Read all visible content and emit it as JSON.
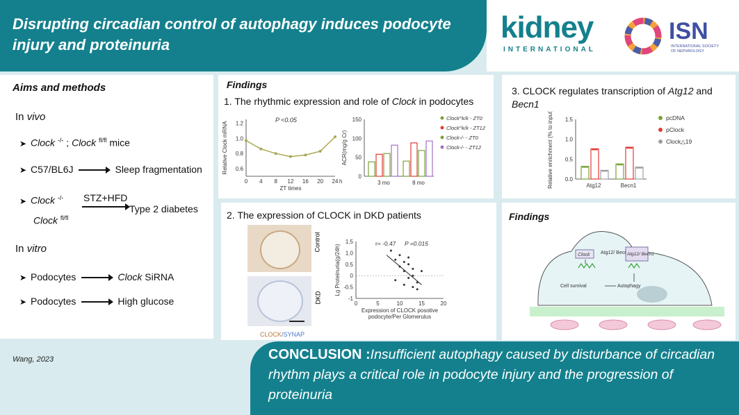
{
  "title": "Disrupting circadian control of autophagy induces podocyte injury and proteinuria",
  "logo_kidney": "kidney",
  "logo_international": "INTERNATIONAL",
  "logo_isn": "ISN",
  "logo_isn_sub1": "INTERNATIONAL SOCIETY",
  "logo_isn_sub2": "OF NEPHROLOGY",
  "aims": {
    "heading": "Aims and methods",
    "in_vivo_a": "In ",
    "in_vivo_b": "vivo",
    "r1_a": "Clock ",
    "r1_sup1": "-/-",
    "r1_b": " ; ",
    "r1_c": "Clock ",
    "r1_sup2": "fl/fl",
    "r1_d": " mice",
    "r2_a": "C57/BL6J",
    "r2_b": "Sleep fragmentation",
    "r3_a": "Clock ",
    "r3_sup1": "-/-",
    "r3_over": "STZ+HFD",
    "r3_b": "Type 2 diabetes",
    "r3_c": "Clock ",
    "r3_sup2": "fl/fl",
    "in_vitro_a": "In ",
    "in_vitro_b": "vitro",
    "r4_a": "Podocytes",
    "r4_b": "Clock",
    " r4_c": " SiRNA",
    "r5_a": "Podocytes",
    "r5_b": "High glucose"
  },
  "findings1": {
    "heading": "Findings",
    "sub_a": "1. The rhythmic expression and role of ",
    "sub_b": "Clock",
    "sub_c": " in podocytes",
    "p_label": "P <0.05",
    "ylabel": "Relative Clock mRNA",
    "xlabel": "ZT times",
    "yticks": [
      "1.2",
      "1.0",
      "0.8",
      "0.6"
    ],
    "xticks": [
      "0",
      "4",
      "8",
      "12",
      "16",
      "20",
      "24"
    ],
    "h_label": "h",
    "acr_ylabel": "ACR(mg/g Cr)",
    "acr_yticks": [
      "150",
      "100",
      "50",
      "0"
    ],
    "acr_groups": [
      "3 mo",
      "8 mo"
    ],
    "legend": [
      "Clock^k/k - ZT0",
      "Clock^k/k - ZT12",
      "Clock-/- - ZT0",
      "Clock-/- - ZT12"
    ]
  },
  "findings2": {
    "sub": "2. The expression of CLOCK in DKD patients",
    "control": "Control",
    "dkd": "DKD",
    "stain_a": "CLOCK",
    "stain_b": "/SYNAP",
    "r_label": "r= -0.47",
    "p_label": "P =0.015",
    "ylabel": "Lg Proteinuria(g/24h)",
    "xlabel1": "Expression of CLOCK posotive",
    "xlabel2": "podocyte/Per Glomerulus",
    "yticks": [
      "1.5",
      "1.0",
      "0.5",
      "0",
      "-0.5",
      "-1"
    ],
    "xticks": [
      "0",
      "5",
      "10",
      "15",
      "20"
    ]
  },
  "findings3": {
    "sub_a": "3. CLOCK regulates transcription of ",
    "sub_b": "Atg12",
    "sub_c": " and ",
    "sub_d": "Becn1",
    "ylabel": "Relative enrichment (% to input)",
    "yticks": [
      "1.5",
      "1.0",
      "0.5",
      "0.0"
    ],
    "groups": [
      "Atg12",
      "Becn1"
    ],
    "legend": [
      "pcDNA",
      "pClock",
      "Clock△19"
    ]
  },
  "findings4": {
    "heading": "Findings",
    "clock": "Clock",
    "atg": "Atg12/ Becn1",
    "atg_box": "Atg12/ Becn1",
    "survival": "Cell survival",
    "autophagy": "Autophagy"
  },
  "footer": {
    "author": "Wang, 2023",
    "concl_a": "CONCLUSION :",
    "concl_b": "Insufficient autophagy caused by disturbance of circadian rhythm plays a critical role in podocyte injury and the progression of proteinuria"
  },
  "colors": {
    "teal": "#14808d",
    "green": "#7aa33a",
    "red": "#e53935",
    "grey": "#9e9e9e",
    "purple": "#a66fc9",
    "olive": "#a9a852"
  },
  "chart_data": [
    {
      "type": "line",
      "title": "",
      "ylabel": "Relative Clock mRNA",
      "xlabel": "ZT times",
      "x": [
        0,
        4,
        8,
        12,
        16,
        20,
        24
      ],
      "values": [
        0.97,
        0.86,
        0.8,
        0.76,
        0.78,
        0.83,
        1.02
      ],
      "ylim": [
        0.5,
        1.25
      ]
    },
    {
      "type": "bar",
      "ylabel": "ACR(mg/g Cr)",
      "categories": [
        "3 mo",
        "8 mo"
      ],
      "ylim": [
        0,
        150
      ],
      "series": [
        {
          "name": "Clock^k/k - ZT0",
          "values": [
            38,
            40
          ]
        },
        {
          "name": "Clock^k/k - ZT12",
          "values": [
            58,
            88
          ]
        },
        {
          "name": "Clock-/- - ZT0",
          "values": [
            60,
            68
          ]
        },
        {
          "name": "Clock-/- - ZT12",
          "values": [
            82,
            93
          ]
        }
      ]
    },
    {
      "type": "scatter",
      "ylabel": "Lg Proteinuria(g/24h)",
      "xlabel": "Expression of CLOCK posotive podocyte/Per Glomerulus",
      "xlim": [
        0,
        20
      ],
      "ylim": [
        -1,
        1.5
      ],
      "points": [
        [
          8,
          1.1
        ],
        [
          9,
          0.7
        ],
        [
          10,
          0.9
        ],
        [
          10,
          0.4
        ],
        [
          11,
          0.6
        ],
        [
          11,
          0.2
        ],
        [
          12,
          0.5
        ],
        [
          12,
          -0.1
        ],
        [
          13,
          0.3
        ],
        [
          13,
          0.0
        ],
        [
          14,
          -0.3
        ],
        [
          14,
          -0.6
        ],
        [
          15,
          0.2
        ],
        [
          11,
          -0.4
        ],
        [
          9,
          -0.2
        ],
        [
          12,
          0.8
        ],
        [
          13,
          -0.5
        ]
      ]
    },
    {
      "type": "bar",
      "ylabel": "Relative enrichment (% to input)",
      "categories": [
        "Atg12",
        "Becn1"
      ],
      "ylim": [
        0,
        1.5
      ],
      "series": [
        {
          "name": "pcDNA",
          "values": [
            0.32,
            0.38
          ]
        },
        {
          "name": "pClock",
          "values": [
            0.76,
            0.8
          ]
        },
        {
          "name": "Clock△19",
          "values": [
            0.22,
            0.3
          ]
        }
      ]
    }
  ]
}
